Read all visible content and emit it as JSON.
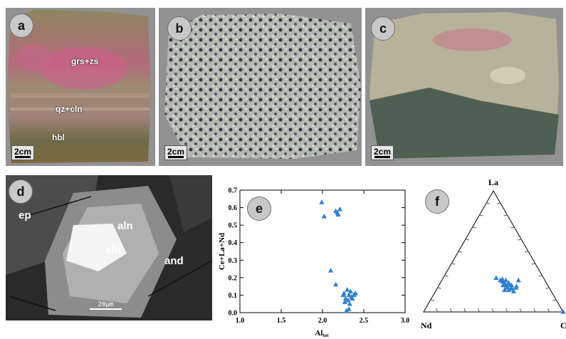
{
  "panels": {
    "a": {
      "letter": "a",
      "labels": [
        "grs+zs",
        "qz+cln",
        "hbl"
      ],
      "scale": "2cm"
    },
    "b": {
      "letter": "b",
      "scale": "2cm"
    },
    "c": {
      "letter": "c",
      "scale": "2cm"
    },
    "d": {
      "letter": "d",
      "labels": [
        "ep",
        "aln",
        "aln",
        "and"
      ],
      "scale": "20μm"
    },
    "e": {
      "letter": "e"
    },
    "f": {
      "letter": "f",
      "vertices": {
        "top": "La",
        "left": "Nd",
        "right": "C"
      }
    }
  },
  "chart_data": [
    {
      "type": "scatter",
      "panel": "e",
      "xlabel": "Al",
      "xlabel_subscript": "tot",
      "ylabel": "Ce+La+Nd",
      "xlim": [
        1.0,
        3.0
      ],
      "ylim": [
        0.0,
        0.7
      ],
      "x_ticks": [
        "1.0",
        "1.5",
        "2.0",
        "2.5",
        "3.0"
      ],
      "y_ticks": [
        "0.0",
        "0.1",
        "0.2",
        "0.3",
        "0.4",
        "0.5",
        "0.6",
        "0.7"
      ],
      "marker": "triangle",
      "color": "#2f7fd0",
      "points": [
        [
          1.99,
          0.63
        ],
        [
          2.02,
          0.55
        ],
        [
          2.16,
          0.58
        ],
        [
          2.18,
          0.57
        ],
        [
          2.21,
          0.59
        ],
        [
          2.19,
          0.56
        ],
        [
          2.1,
          0.24
        ],
        [
          2.16,
          0.16
        ],
        [
          2.26,
          0.11
        ],
        [
          2.28,
          0.08
        ],
        [
          2.3,
          0.13
        ],
        [
          2.32,
          0.1
        ],
        [
          2.34,
          0.12
        ],
        [
          2.35,
          0.09
        ],
        [
          2.38,
          0.1
        ],
        [
          2.4,
          0.11
        ],
        [
          2.27,
          0.06
        ],
        [
          2.31,
          0.07
        ],
        [
          2.33,
          0.05
        ],
        [
          2.29,
          0.01
        ],
        [
          2.32,
          0.02
        ],
        [
          2.36,
          0.08
        ],
        [
          2.25,
          0.1
        ]
      ]
    },
    {
      "type": "ternary",
      "panel": "f",
      "axes": [
        "La",
        "Nd",
        "C"
      ],
      "marker": "triangle",
      "color": "#2f7fd0",
      "points": [
        [
          0.28,
          0.34,
          0.38
        ],
        [
          0.26,
          0.32,
          0.42
        ],
        [
          0.27,
          0.3,
          0.43
        ],
        [
          0.25,
          0.31,
          0.44
        ],
        [
          0.24,
          0.3,
          0.46
        ],
        [
          0.26,
          0.28,
          0.46
        ],
        [
          0.23,
          0.31,
          0.46
        ],
        [
          0.22,
          0.32,
          0.46
        ],
        [
          0.24,
          0.27,
          0.49
        ],
        [
          0.22,
          0.28,
          0.5
        ],
        [
          0.21,
          0.3,
          0.49
        ],
        [
          0.2,
          0.31,
          0.49
        ],
        [
          0.22,
          0.26,
          0.52
        ],
        [
          0.2,
          0.27,
          0.53
        ],
        [
          0.19,
          0.28,
          0.53
        ],
        [
          0.18,
          0.3,
          0.52
        ],
        [
          0.2,
          0.24,
          0.56
        ],
        [
          0.17,
          0.27,
          0.56
        ],
        [
          0.18,
          0.33,
          0.49
        ],
        [
          0.21,
          0.23,
          0.56
        ],
        [
          0.26,
          0.19,
          0.55
        ],
        [
          0.0,
          0.0,
          1.0
        ]
      ]
    }
  ]
}
